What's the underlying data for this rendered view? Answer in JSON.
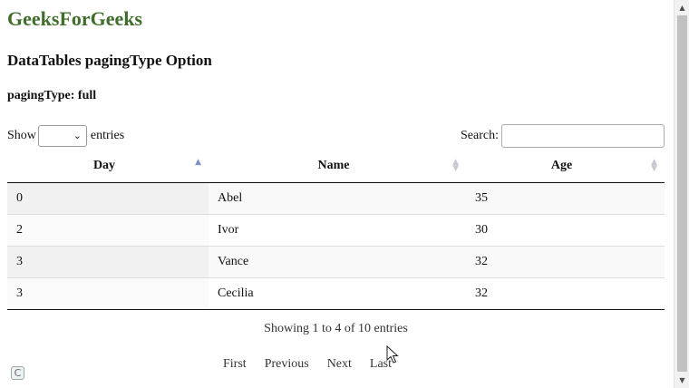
{
  "page": {
    "site_title": "GeeksForGeeks",
    "heading": "DataTables pagingType Option",
    "subheading": "pagingType: full"
  },
  "controls": {
    "show_label": "Show",
    "entries_label": "entries",
    "length_value": "",
    "search_label": "Search:",
    "search_value": ""
  },
  "table": {
    "columns": [
      "Day",
      "Name",
      "Age"
    ],
    "sorted_column": "Day",
    "sort_direction": "ascending",
    "rows": [
      {
        "day": "0",
        "name": "Abel",
        "age": "35"
      },
      {
        "day": "2",
        "name": "Ivor",
        "age": "30"
      },
      {
        "day": "3",
        "name": "Vance",
        "age": "32"
      },
      {
        "day": "3",
        "name": "Cecilia",
        "age": "32"
      }
    ]
  },
  "info": "Showing 1 to 4 of 10 entries",
  "pagination": {
    "first": "First",
    "previous": "Previous",
    "next": "Next",
    "last": "Last"
  },
  "icons": {
    "sort_ascending": "sort-ascending-icon",
    "sort_both": "sort-both-icon",
    "dropdown": "chevron-down-icon"
  }
}
